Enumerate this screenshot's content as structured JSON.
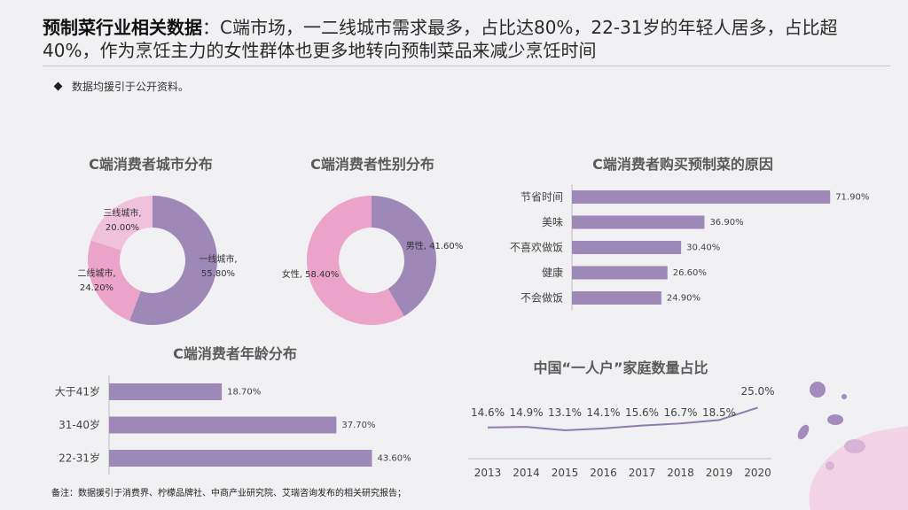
{
  "header": {
    "title_bold": "预制菜行业相关数据",
    "title_rest": "：C端市场，一二线城市需求最多，占比达80%，22-31岁的年轻人居多，占比超40%，作为烹饪主力的女性群体也更多地转向预制菜品来减少烹饪时间"
  },
  "bullet_text": "数据均援引于公开资料。",
  "footnote": "备注：数据援引于消费界、柠檬品牌社、中商产业研究院、艾瑞咨询发布的相关研究报告；",
  "colors": {
    "purple": "#9e88b8",
    "pink_light": "#efc1dc",
    "pink": "#eba3c9",
    "line": "#8e7bb0"
  },
  "chart_data": [
    {
      "type": "pie",
      "title": "C端消费者城市分布",
      "slices": [
        {
          "label": "一线城市,",
          "value": 55.8,
          "value_label": "55.80%"
        },
        {
          "label": "二线城市,",
          "value": 24.2,
          "value_label": "24.20%"
        },
        {
          "label": "三线城市,",
          "value": 20.0,
          "value_label": "20.00%"
        }
      ]
    },
    {
      "type": "pie",
      "title": "C端消费者性别分布",
      "slices": [
        {
          "label": "男性,",
          "value": 41.6,
          "value_label": "41.60%"
        },
        {
          "label": "女性,",
          "value": 58.4,
          "value_label": "58.40%"
        }
      ]
    },
    {
      "type": "bar",
      "orientation": "horizontal",
      "title": "C端消费者购买预制菜的原因",
      "categories": [
        "节省时间",
        "美味",
        "不喜欢做饭",
        "健康",
        "不会做饭"
      ],
      "values": [
        71.9,
        36.9,
        30.4,
        26.6,
        24.9
      ],
      "value_labels": [
        "71.90%",
        "36.90%",
        "30.40%",
        "26.60%",
        "24.90%"
      ]
    },
    {
      "type": "bar",
      "orientation": "horizontal",
      "title": "C端消费者年龄分布",
      "categories": [
        "大于41岁",
        "31-40岁",
        "22-31岁"
      ],
      "values": [
        18.7,
        37.7,
        43.6
      ],
      "value_labels": [
        "18.70%",
        "37.70%",
        "43.60%"
      ]
    },
    {
      "type": "line",
      "title": "中国“一人户”家庭数量占比",
      "x": [
        "2013",
        "2014",
        "2015",
        "2016",
        "2017",
        "2018",
        "2019",
        "2020"
      ],
      "values": [
        14.6,
        14.9,
        13.1,
        14.1,
        15.6,
        16.7,
        18.5,
        25.0
      ],
      "value_labels": [
        "14.6%",
        "14.9%",
        "13.1%",
        "14.1%",
        "15.6%",
        "16.7%",
        "18.5%",
        "25.0%"
      ]
    }
  ]
}
